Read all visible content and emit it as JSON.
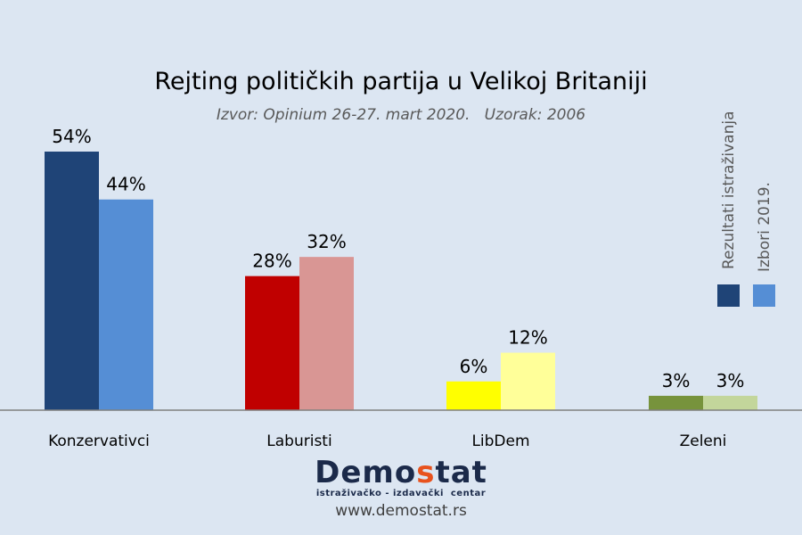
{
  "chart_data": {
    "type": "bar",
    "title": "Rejting političkih partija u Velikoj Britaniji",
    "subtitle": "Izvor: Opinium 26-27. mart 2020.   Uzorak: 2006",
    "categories": [
      "Konzervativci",
      "Laburisti",
      "LibDem",
      "Zeleni"
    ],
    "series": [
      {
        "name": "Rezultati istraživanja",
        "values": [
          54,
          28,
          6,
          3
        ],
        "colors": [
          "#1f4477",
          "#c00000",
          "#ffff00",
          "#77933c"
        ]
      },
      {
        "name": "Izbori 2019.",
        "values": [
          44,
          32,
          12,
          3
        ],
        "colors": [
          "#558ed5",
          "#d99694",
          "#ffff99",
          "#c3d69b"
        ]
      }
    ],
    "value_suffix": "%",
    "ylim": [
      0,
      54
    ],
    "grid": false,
    "legend_placement": "right",
    "legend_colors": [
      "#1f4477",
      "#558ed5"
    ]
  },
  "branding": {
    "logo_prefix": "Demo",
    "logo_accent": "s",
    "logo_suffix": "tat",
    "tagline": "istraživačko - izdavački  centar",
    "url": "www.demostat.rs"
  },
  "background": "#dce6f2"
}
